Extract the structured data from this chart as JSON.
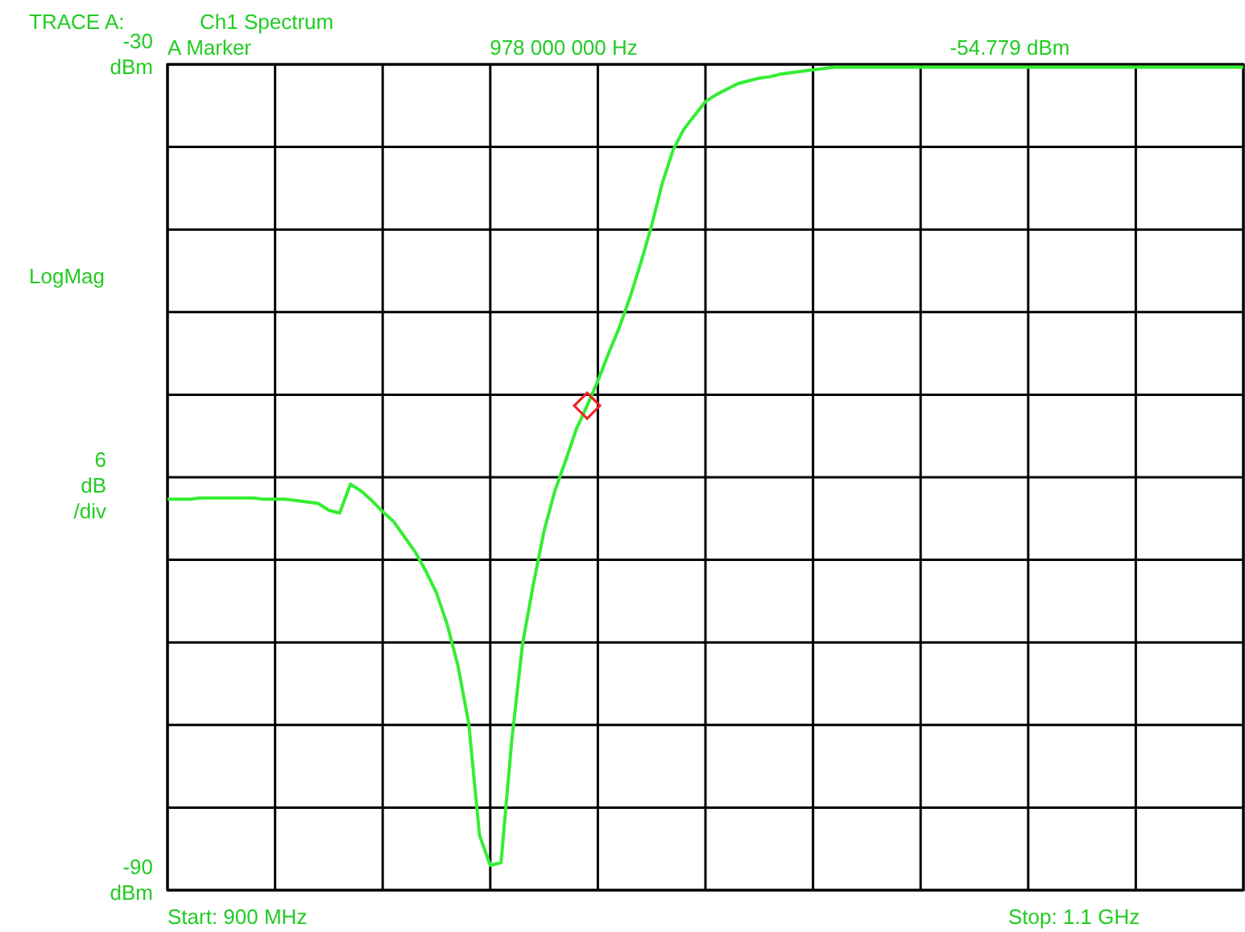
{
  "chart_data": {
    "type": "line",
    "title": "Ch1 Spectrum",
    "annotations": [
      "TRACE A:",
      "A Marker",
      "978 000 000 Hz",
      "-54.779 dBm",
      "LogMag",
      "6 dB /div",
      "Start: 900 MHz",
      "Stop: 1.1 GHz"
    ],
    "categories": [
      null,
      null,
      null,
      null,
      null,
      null,
      null,
      null,
      null,
      null,
      null,
      null,
      null,
      null,
      null,
      null,
      null,
      null,
      null,
      null,
      null,
      null,
      null,
      null,
      null,
      null,
      null,
      null,
      null,
      null,
      null,
      null,
      null,
      null,
      null,
      null,
      null,
      null,
      null,
      null,
      null,
      null,
      null,
      null,
      null,
      null,
      null,
      null,
      null,
      null,
      null,
      null,
      null,
      null,
      null,
      null,
      null,
      null,
      null,
      null,
      null,
      null,
      null,
      null,
      null,
      null,
      null,
      null,
      null,
      null,
      null,
      null,
      null,
      null,
      null,
      null,
      null,
      null,
      null,
      null,
      null,
      null,
      null,
      null,
      null,
      null,
      null,
      null,
      null,
      null,
      null,
      null,
      null,
      null,
      null,
      null,
      null,
      null,
      null,
      null,
      null
    ],
    "ylim": [
      -90,
      -30
    ],
    "yticks": [
      {
        "value": -90,
        "label": "-90 dBm"
      },
      {
        "value": -84,
        "label": null
      },
      {
        "value": -78,
        "label": null
      },
      {
        "value": -72,
        "label": null
      },
      {
        "value": -66,
        "label": null
      },
      {
        "value": -60,
        "label": null
      },
      {
        "value": -54,
        "label": null
      },
      {
        "value": -48,
        "label": null
      },
      {
        "value": -42,
        "label": null
      },
      {
        "value": -36,
        "label": null
      },
      {
        "value": -30,
        "label": "-30 dBm"
      }
    ],
    "grid": true,
    "line_style": "solid",
    "series": [
      {
        "color": "#33ee33",
        "values": [
          -61.6,
          -61.6,
          -61.6,
          -61.5,
          -61.5,
          -61.5,
          -61.5,
          -61.5,
          -61.5,
          -61.6,
          -61.6,
          -61.6,
          -61.7,
          -61.8,
          -61.9,
          -62.4,
          -62.6,
          -60.5,
          -61.0,
          -61.7,
          -62.5,
          -63.2,
          -64.3,
          -65.4,
          -66.8,
          -68.4,
          -70.7,
          -73.7,
          -77.9,
          -86.0,
          -88.2,
          -88.0,
          -79.1,
          -72.1,
          -67.8,
          -63.9,
          -61.0,
          -58.8,
          -56.5,
          -54.8,
          -53.0,
          -51.0,
          -49.1,
          -46.9,
          -44.4,
          -41.7,
          -38.6,
          -36.2,
          -34.7,
          -33.7,
          -32.7,
          -32.2,
          -31.8,
          -31.4,
          -31.2,
          -31.0,
          -30.9,
          -30.7,
          -30.6,
          -30.5,
          -30.4,
          -30.3,
          -30.2,
          -30.2,
          -30.2,
          -30.2,
          -30.2,
          -30.2,
          -30.2,
          -30.2,
          -30.2,
          -30.2,
          -30.2,
          -30.2,
          -30.2,
          -30.2,
          -30.2,
          -30.2,
          -30.2,
          -30.2,
          -30.2,
          -30.2,
          -30.2,
          -30.2,
          -30.2,
          -30.2,
          -30.2,
          -30.2,
          -30.2,
          -30.2,
          -30.2,
          -30.2,
          -30.2,
          -30.2,
          -30.2,
          -30.2,
          -30.2,
          -30.2,
          -30.2,
          -30.2,
          -30.2
        ]
      },
      {
        "type": "scatter",
        "marker": "diamond",
        "color": "#ee2222",
        "values": [
          null,
          null,
          null,
          null,
          null,
          null,
          null,
          null,
          null,
          null,
          null,
          null,
          null,
          null,
          null,
          null,
          null,
          null,
          null,
          null,
          null,
          null,
          null,
          null,
          null,
          null,
          null,
          null,
          null,
          null,
          null,
          null,
          null,
          null,
          null,
          null,
          null,
          null,
          null,
          -54.8,
          null,
          null,
          null,
          null,
          null,
          null,
          null,
          null,
          null,
          null,
          null,
          null,
          null,
          null,
          null,
          null,
          null,
          null,
          null,
          null,
          null,
          null,
          null,
          null,
          null,
          null,
          null,
          null,
          null,
          null,
          null,
          null,
          null,
          null,
          null,
          null,
          null,
          null,
          null,
          null,
          null,
          null,
          null,
          null,
          null,
          null,
          null,
          null,
          null,
          null,
          null,
          null,
          null,
          null,
          null,
          null,
          null,
          null,
          null,
          null,
          null
        ]
      }
    ]
  }
}
